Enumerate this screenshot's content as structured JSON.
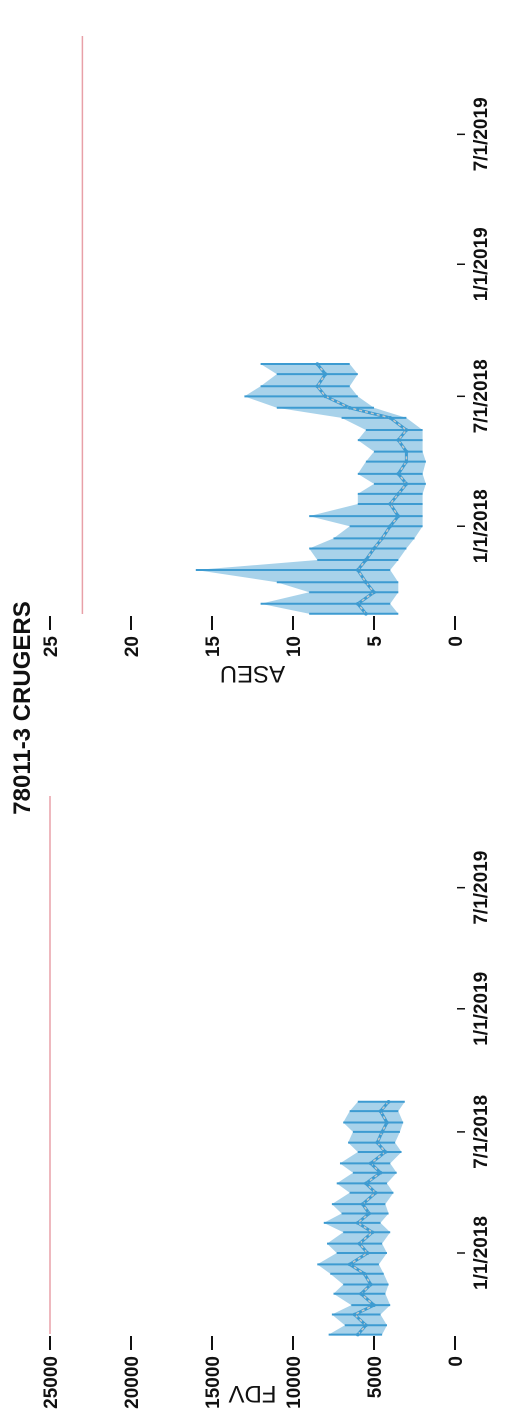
{
  "page": {
    "title": "78011-3 CRUGERS"
  },
  "colors": {
    "series": "#3d9bd1",
    "smooth": "#c8c8c8",
    "threshold": "#e8a0a8",
    "axis_text": "#111111"
  },
  "chart_data": [
    {
      "type": "line",
      "title": "",
      "ylabel": "FDV",
      "xlabel": "",
      "ylim": [
        0,
        25000
      ],
      "yticks": [
        "0",
        "5000",
        "10000",
        "15000",
        "20000",
        "25000"
      ],
      "xlim": [
        "2017-08-15",
        "2019-11-15"
      ],
      "xticks": [
        {
          "date": "2018-01-01",
          "label": "1/1/2018"
        },
        {
          "date": "2018-07-01",
          "label": "7/1/2018"
        },
        {
          "date": "2019-01-01",
          "label": "1/1/2019"
        },
        {
          "date": "2019-07-01",
          "label": "7/1/2019"
        }
      ],
      "threshold": 25000,
      "series": [
        {
          "x": [
            "2017-09-01",
            "2017-09-15",
            "2017-10-01",
            "2017-10-15",
            "2017-11-01",
            "2017-11-15",
            "2017-12-01",
            "2017-12-15",
            "2018-01-01",
            "2018-01-15",
            "2018-02-01",
            "2018-02-15",
            "2018-03-01",
            "2018-03-15",
            "2018-04-01",
            "2018-04-15",
            "2018-05-01",
            "2018-05-15",
            "2018-06-01",
            "2018-06-15",
            "2018-07-01",
            "2018-07-15",
            "2018-08-01",
            "2018-08-15"
          ],
          "y": [
            6000,
            5500,
            6200,
            5000,
            5800,
            5200,
            5600,
            6500,
            5400,
            5900,
            5100,
            6000,
            5300,
            5700,
            4900,
            5500,
            4600,
            5200,
            4300,
            4800,
            4500,
            4200,
            4600,
            4100
          ],
          "y_low": [
            4500,
            4200,
            4600,
            4000,
            4300,
            4100,
            4400,
            4700,
            4200,
            4500,
            4000,
            4600,
            4100,
            4300,
            3800,
            4200,
            3600,
            4000,
            3300,
            3700,
            3400,
            3200,
            3500,
            3100
          ],
          "y_high": [
            7800,
            6800,
            7600,
            6400,
            7500,
            6900,
            7700,
            8500,
            7300,
            7900,
            6900,
            8100,
            7000,
            7600,
            6500,
            7300,
            6300,
            7100,
            6000,
            6600,
            6300,
            6900,
            6500,
            6000
          ]
        }
      ]
    },
    {
      "type": "line",
      "title": "",
      "ylabel": "ASEU",
      "xlabel": "",
      "ylim": [
        0,
        25
      ],
      "yticks": [
        "0",
        "5",
        "10",
        "15",
        "20",
        "25"
      ],
      "xlim": [
        "2017-08-15",
        "2019-11-15"
      ],
      "xticks": [
        {
          "date": "2018-01-01",
          "label": "1/1/2018"
        },
        {
          "date": "2018-07-01",
          "label": "7/1/2018"
        },
        {
          "date": "2019-01-01",
          "label": "1/1/2019"
        },
        {
          "date": "2019-07-01",
          "label": "7/1/2019"
        }
      ],
      "threshold": 23,
      "series": [
        {
          "x": [
            "2017-09-01",
            "2017-09-15",
            "2017-10-01",
            "2017-10-15",
            "2017-11-01",
            "2017-11-15",
            "2017-12-01",
            "2017-12-15",
            "2018-01-01",
            "2018-01-15",
            "2018-02-01",
            "2018-02-15",
            "2018-03-01",
            "2018-03-15",
            "2018-04-01",
            "2018-04-15",
            "2018-05-01",
            "2018-05-15",
            "2018-06-01",
            "2018-06-15",
            "2018-07-01",
            "2018-07-15",
            "2018-08-01",
            "2018-08-15"
          ],
          "y": [
            5.5,
            6.0,
            5.0,
            5.5,
            6.0,
            5.5,
            5.0,
            4.5,
            4.0,
            3.5,
            4.0,
            3.5,
            3.0,
            3.5,
            3.0,
            3.0,
            3.5,
            3.0,
            4.0,
            6.5,
            8.0,
            8.5,
            8.0,
            8.5
          ],
          "y_low": [
            3.5,
            4.0,
            3.5,
            3.5,
            4.0,
            3.5,
            3.0,
            2.5,
            2.0,
            2.0,
            2.0,
            2.0,
            1.8,
            2.0,
            1.8,
            2.0,
            2.0,
            2.0,
            3.0,
            5.0,
            6.0,
            6.5,
            6.0,
            6.5
          ],
          "y_high": [
            9.0,
            12.0,
            9.0,
            11.0,
            16.0,
            8.5,
            9.0,
            7.5,
            6.5,
            9.0,
            6.0,
            6.0,
            5.0,
            6.0,
            5.5,
            5.0,
            6.0,
            5.5,
            7.0,
            11.0,
            13.0,
            12.0,
            11.0,
            12.0
          ]
        }
      ]
    }
  ]
}
